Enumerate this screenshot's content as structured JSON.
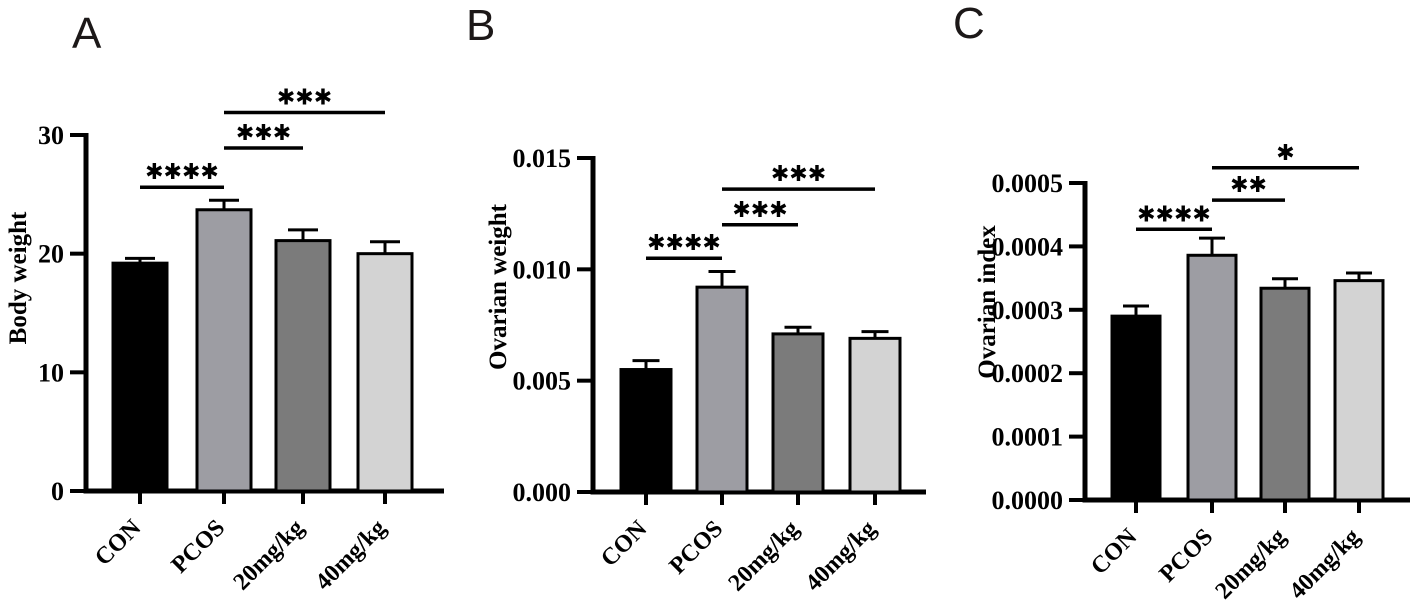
{
  "figure": {
    "background": "#ffffff",
    "text_color": "#000000",
    "panel_letters": [
      "A",
      "B",
      "C"
    ]
  },
  "chart_data": [
    {
      "type": "bar",
      "panel_label": "A",
      "title": "",
      "xlabel": "",
      "ylabel": "Body weight",
      "categories": [
        "CON",
        "PCOS",
        "20mg/kg",
        "40mg/kg"
      ],
      "values": [
        19.2,
        23.7,
        21.1,
        20.0
      ],
      "errors": [
        0.4,
        0.8,
        0.9,
        1.0
      ],
      "bar_colors": [
        "#000000",
        "#9d9da3",
        "#7b7b7b",
        "#d3d3d3"
      ],
      "ylim": [
        0,
        30
      ],
      "yticks": [
        0,
        10,
        20,
        30
      ],
      "ytick_labels": [
        "0",
        "10",
        "20",
        "30"
      ],
      "grid": false,
      "legend": "none",
      "significance": [
        {
          "from": 0,
          "to": 1,
          "label": "****",
          "y": 25.6
        },
        {
          "from": 1,
          "to": 2,
          "label": "***",
          "y": 28.9
        },
        {
          "from": 1,
          "to": 3,
          "label": "***",
          "y": 31.9
        }
      ]
    },
    {
      "type": "bar",
      "panel_label": "B",
      "title": "",
      "xlabel": "",
      "ylabel": "Ovarian weight",
      "categories": [
        "CON",
        "PCOS",
        "20mg/kg",
        "40mg/kg"
      ],
      "values": [
        0.0055,
        0.0092,
        0.0071,
        0.0069
      ],
      "errors": [
        0.0004,
        0.0007,
        0.0003,
        0.0003
      ],
      "bar_colors": [
        "#000000",
        "#9d9da3",
        "#7b7b7b",
        "#d3d3d3"
      ],
      "ylim": [
        0,
        0.015
      ],
      "yticks": [
        0,
        0.005,
        0.01,
        0.015
      ],
      "ytick_labels": [
        "0.000",
        "0.005",
        "0.010",
        "0.015"
      ],
      "grid": false,
      "legend": "none",
      "significance": [
        {
          "from": 0,
          "to": 1,
          "label": "****",
          "y": 0.0105
        },
        {
          "from": 1,
          "to": 2,
          "label": "***",
          "y": 0.012
        },
        {
          "from": 1,
          "to": 3,
          "label": "***",
          "y": 0.0136
        }
      ]
    },
    {
      "type": "bar",
      "panel_label": "C",
      "title": "",
      "xlabel": "",
      "ylabel": "Ovarian index",
      "categories": [
        "CON",
        "PCOS",
        "20mg/kg",
        "40mg/kg"
      ],
      "values": [
        0.00029,
        0.000386,
        0.000334,
        0.000346
      ],
      "errors": [
        1.6e-05,
        2.7e-05,
        1.5e-05,
        1.2e-05
      ],
      "bar_colors": [
        "#000000",
        "#9d9da3",
        "#7b7b7b",
        "#d3d3d3"
      ],
      "ylim": [
        0,
        0.0005
      ],
      "yticks": [
        0,
        0.0001,
        0.0002,
        0.0003,
        0.0004,
        0.0005
      ],
      "ytick_labels": [
        "0.0000",
        "0.0001",
        "0.0002",
        "0.0003",
        "0.0004",
        "0.0005"
      ],
      "grid": false,
      "legend": "none",
      "significance": [
        {
          "from": 0,
          "to": 1,
          "label": "****",
          "y": 0.000427
        },
        {
          "from": 1,
          "to": 2,
          "label": "**",
          "y": 0.000473
        },
        {
          "from": 1,
          "to": 3,
          "label": "*",
          "y": 0.000524
        }
      ]
    }
  ]
}
